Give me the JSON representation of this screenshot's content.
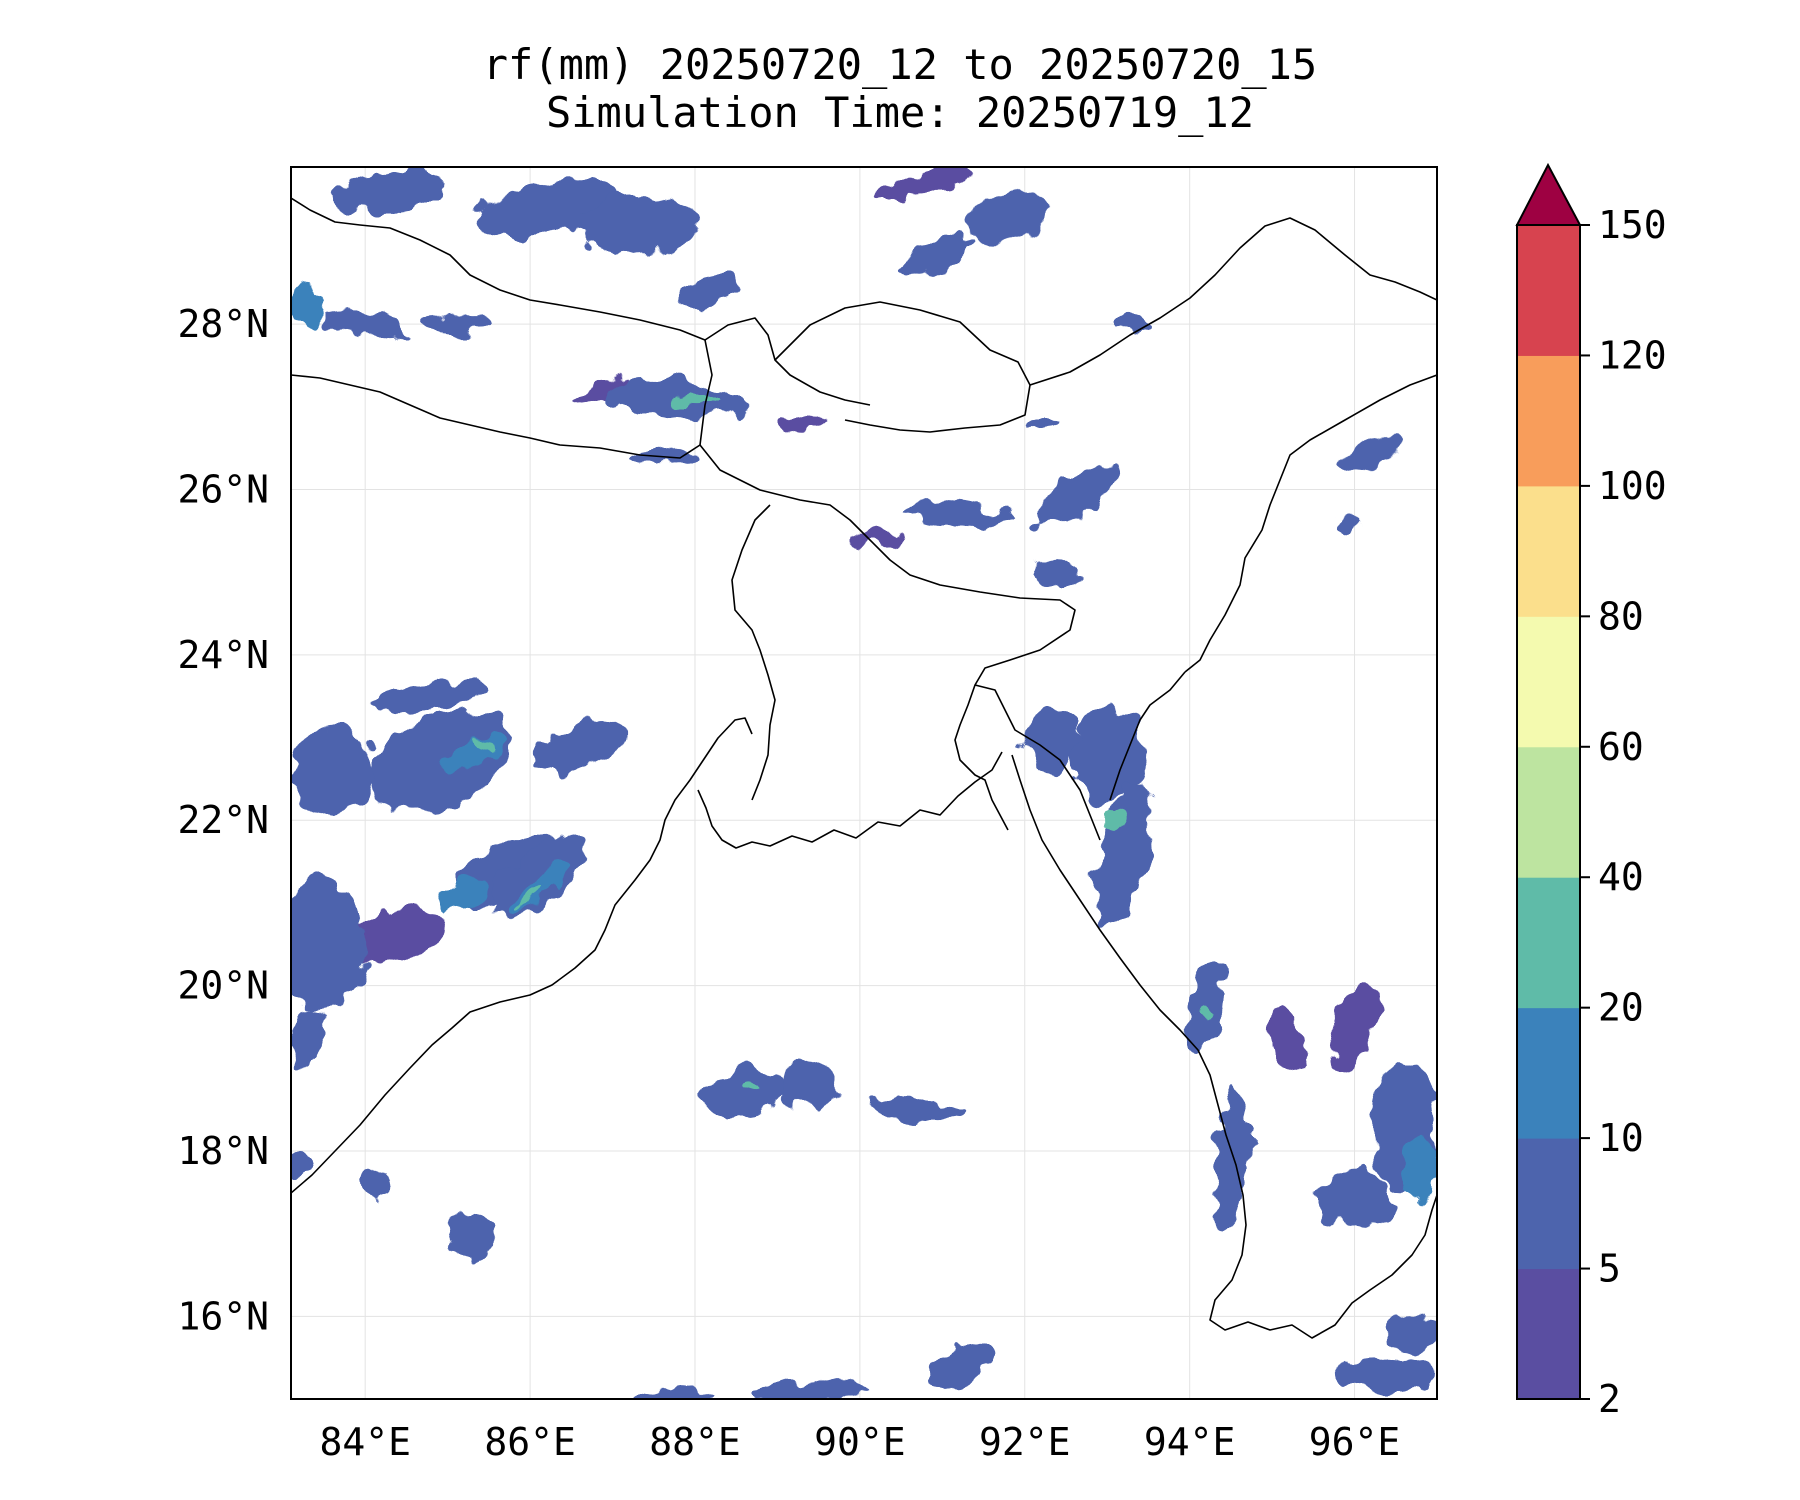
{
  "title": {
    "line1": "rf(mm) 20250720_12 to 20250720_15",
    "line2": "Simulation Time: 20250719_12"
  },
  "map": {
    "lon_range": [
      83.1,
      97.0
    ],
    "lat_range": [
      15.0,
      29.9
    ],
    "lon_ticks": [
      {
        "value": 84,
        "label": "84°E"
      },
      {
        "value": 86,
        "label": "86°E"
      },
      {
        "value": 88,
        "label": "88°E"
      },
      {
        "value": 90,
        "label": "90°E"
      },
      {
        "value": 92,
        "label": "92°E"
      },
      {
        "value": 94,
        "label": "94°E"
      },
      {
        "value": 96,
        "label": "96°E"
      }
    ],
    "lat_ticks": [
      {
        "value": 16,
        "label": "16°N"
      },
      {
        "value": 18,
        "label": "18°N"
      },
      {
        "value": 20,
        "label": "20°N"
      },
      {
        "value": 22,
        "label": "22°N"
      },
      {
        "value": 24,
        "label": "24°N"
      },
      {
        "value": 26,
        "label": "26°N"
      },
      {
        "value": 28,
        "label": "28°N"
      }
    ],
    "grid": true
  },
  "colorbar": {
    "levels": [
      "2",
      "5",
      "10",
      "20",
      "40",
      "60",
      "80",
      "100",
      "120",
      "150"
    ],
    "colors": [
      "#5a4ea1",
      "#4d64ad",
      "#3b82bb",
      "#5fbba8",
      "#bde4a0",
      "#f4faaf",
      "#fbdf8c",
      "#f89d5b",
      "#d7434f"
    ],
    "extend_color": "#9e0142",
    "extend": "max"
  },
  "chart_data": {
    "type": "heatmap",
    "variable": "rf(mm)",
    "title": "rf(mm) 20250720_12 to 20250720_15",
    "subtitle": "Simulation Time: 20250719_12",
    "xlim": [
      83.1,
      97.0
    ],
    "ylim": [
      15.0,
      29.9
    ],
    "levels": [
      2,
      5,
      10,
      20,
      40,
      60,
      80,
      100,
      120,
      150
    ],
    "rain_cells": [
      {
        "lon": 84.3,
        "lat": 29.6,
        "rx": 0.7,
        "ry": 0.25,
        "level": 1,
        "rot": -5
      },
      {
        "lon": 86.2,
        "lat": 29.4,
        "rx": 0.9,
        "ry": 0.3,
        "level": 1,
        "rot": -10
      },
      {
        "lon": 87.3,
        "lat": 29.2,
        "rx": 0.7,
        "ry": 0.35,
        "level": 1,
        "rot": 0
      },
      {
        "lon": 88.2,
        "lat": 28.4,
        "rx": 0.4,
        "ry": 0.18,
        "level": 1,
        "rot": -10
      },
      {
        "lon": 90.9,
        "lat": 28.8,
        "rx": 0.5,
        "ry": 0.18,
        "level": 1,
        "rot": -25
      },
      {
        "lon": 91.8,
        "lat": 29.3,
        "rx": 0.5,
        "ry": 0.3,
        "level": 1,
        "rot": -20
      },
      {
        "lon": 90.8,
        "lat": 29.7,
        "rx": 0.6,
        "ry": 0.12,
        "level": 0,
        "rot": -15
      },
      {
        "lon": 83.3,
        "lat": 28.2,
        "rx": 0.2,
        "ry": 0.25,
        "level": 2,
        "rot": 0
      },
      {
        "lon": 84.0,
        "lat": 28.0,
        "rx": 0.5,
        "ry": 0.15,
        "level": 1,
        "rot": 10
      },
      {
        "lon": 85.1,
        "lat": 28.0,
        "rx": 0.4,
        "ry": 0.12,
        "level": 1,
        "rot": 0
      },
      {
        "lon": 87.8,
        "lat": 27.1,
        "rx": 0.9,
        "ry": 0.22,
        "level": 1,
        "rot": 5
      },
      {
        "lon": 88.0,
        "lat": 27.1,
        "rx": 0.25,
        "ry": 0.08,
        "level": 3,
        "rot": 0
      },
      {
        "lon": 87.6,
        "lat": 26.4,
        "rx": 0.35,
        "ry": 0.1,
        "level": 1,
        "rot": 0
      },
      {
        "lon": 86.9,
        "lat": 27.2,
        "rx": 0.4,
        "ry": 0.1,
        "level": 0,
        "rot": -20
      },
      {
        "lon": 91.2,
        "lat": 25.7,
        "rx": 0.7,
        "ry": 0.12,
        "level": 1,
        "rot": 5
      },
      {
        "lon": 90.2,
        "lat": 25.4,
        "rx": 0.35,
        "ry": 0.1,
        "level": 0,
        "rot": 0
      },
      {
        "lon": 92.6,
        "lat": 25.9,
        "rx": 0.6,
        "ry": 0.2,
        "level": 1,
        "rot": -35
      },
      {
        "lon": 89.3,
        "lat": 26.8,
        "rx": 0.3,
        "ry": 0.12,
        "level": 0,
        "rot": 0
      },
      {
        "lon": 84.8,
        "lat": 23.5,
        "rx": 0.7,
        "ry": 0.16,
        "level": 1,
        "rot": -10
      },
      {
        "lon": 84.9,
        "lat": 22.7,
        "rx": 0.9,
        "ry": 0.55,
        "level": 1,
        "rot": -25
      },
      {
        "lon": 85.3,
        "lat": 22.8,
        "rx": 0.4,
        "ry": 0.15,
        "level": 2,
        "rot": -25
      },
      {
        "lon": 85.4,
        "lat": 22.9,
        "rx": 0.15,
        "ry": 0.07,
        "level": 3,
        "rot": 0
      },
      {
        "lon": 83.6,
        "lat": 22.6,
        "rx": 0.5,
        "ry": 0.5,
        "level": 1,
        "rot": 0
      },
      {
        "lon": 86.6,
        "lat": 22.9,
        "rx": 0.6,
        "ry": 0.25,
        "level": 1,
        "rot": -20
      },
      {
        "lon": 85.7,
        "lat": 21.4,
        "rx": 0.7,
        "ry": 0.35,
        "level": 1,
        "rot": -30
      },
      {
        "lon": 86.1,
        "lat": 21.3,
        "rx": 0.7,
        "ry": 0.3,
        "level": 1,
        "rot": -40
      },
      {
        "lon": 86.1,
        "lat": 21.2,
        "rx": 0.5,
        "ry": 0.13,
        "level": 2,
        "rot": -40
      },
      {
        "lon": 86.0,
        "lat": 21.1,
        "rx": 0.22,
        "ry": 0.07,
        "level": 3,
        "rot": -40
      },
      {
        "lon": 85.2,
        "lat": 21.1,
        "rx": 0.35,
        "ry": 0.15,
        "level": 2,
        "rot": -30
      },
      {
        "lon": 83.5,
        "lat": 20.5,
        "rx": 0.5,
        "ry": 0.8,
        "level": 1,
        "rot": 0
      },
      {
        "lon": 84.4,
        "lat": 20.6,
        "rx": 0.6,
        "ry": 0.3,
        "level": 0,
        "rot": -15
      },
      {
        "lon": 83.3,
        "lat": 19.4,
        "rx": 0.2,
        "ry": 0.35,
        "level": 1,
        "rot": 0
      },
      {
        "lon": 93.0,
        "lat": 22.8,
        "rx": 0.45,
        "ry": 0.6,
        "level": 1,
        "rot": 10
      },
      {
        "lon": 93.2,
        "lat": 21.6,
        "rx": 0.3,
        "ry": 0.9,
        "level": 1,
        "rot": 15
      },
      {
        "lon": 93.1,
        "lat": 22.0,
        "rx": 0.12,
        "ry": 0.08,
        "level": 3,
        "rot": 0
      },
      {
        "lon": 92.3,
        "lat": 23.0,
        "rx": 0.3,
        "ry": 0.4,
        "level": 1,
        "rot": 0
      },
      {
        "lon": 94.2,
        "lat": 19.8,
        "rx": 0.22,
        "ry": 0.55,
        "level": 1,
        "rot": 10
      },
      {
        "lon": 94.2,
        "lat": 19.7,
        "rx": 0.08,
        "ry": 0.06,
        "level": 3,
        "rot": 0
      },
      {
        "lon": 94.5,
        "lat": 17.9,
        "rx": 0.18,
        "ry": 0.9,
        "level": 1,
        "rot": 5
      },
      {
        "lon": 96.0,
        "lat": 17.4,
        "rx": 0.45,
        "ry": 0.35,
        "level": 1,
        "rot": 0
      },
      {
        "lon": 96.6,
        "lat": 18.3,
        "rx": 0.4,
        "ry": 0.8,
        "level": 1,
        "rot": 0
      },
      {
        "lon": 96.8,
        "lat": 17.8,
        "rx": 0.2,
        "ry": 0.4,
        "level": 2,
        "rot": 0
      },
      {
        "lon": 96.0,
        "lat": 19.5,
        "rx": 0.25,
        "ry": 0.6,
        "level": 0,
        "rot": 20
      },
      {
        "lon": 95.2,
        "lat": 19.3,
        "rx": 0.2,
        "ry": 0.4,
        "level": 0,
        "rot": -20
      },
      {
        "lon": 88.6,
        "lat": 18.7,
        "rx": 0.5,
        "ry": 0.3,
        "level": 1,
        "rot": -10
      },
      {
        "lon": 88.7,
        "lat": 18.8,
        "rx": 0.12,
        "ry": 0.06,
        "level": 3,
        "rot": 0
      },
      {
        "lon": 89.4,
        "lat": 18.8,
        "rx": 0.35,
        "ry": 0.3,
        "level": 1,
        "rot": 30
      },
      {
        "lon": 90.7,
        "lat": 18.5,
        "rx": 0.6,
        "ry": 0.13,
        "level": 1,
        "rot": 5
      },
      {
        "lon": 85.3,
        "lat": 17.0,
        "rx": 0.3,
        "ry": 0.3,
        "level": 1,
        "rot": 0
      },
      {
        "lon": 96.4,
        "lat": 15.3,
        "rx": 0.6,
        "ry": 0.18,
        "level": 1,
        "rot": 0
      },
      {
        "lon": 96.7,
        "lat": 15.8,
        "rx": 0.3,
        "ry": 0.25,
        "level": 1,
        "rot": 0
      },
      {
        "lon": 89.4,
        "lat": 15.1,
        "rx": 0.7,
        "ry": 0.12,
        "level": 1,
        "rot": -5
      },
      {
        "lon": 91.2,
        "lat": 15.4,
        "rx": 0.4,
        "ry": 0.2,
        "level": 1,
        "rot": -20
      },
      {
        "lon": 87.7,
        "lat": 15.05,
        "rx": 0.5,
        "ry": 0.1,
        "level": 1,
        "rot": 0
      },
      {
        "lon": 96.2,
        "lat": 26.4,
        "rx": 0.4,
        "ry": 0.15,
        "level": 1,
        "rot": -20
      },
      {
        "lon": 95.9,
        "lat": 25.6,
        "rx": 0.15,
        "ry": 0.1,
        "level": 1,
        "rot": 0
      },
      {
        "lon": 92.4,
        "lat": 25.0,
        "rx": 0.3,
        "ry": 0.15,
        "level": 1,
        "rot": 0
      },
      {
        "lon": 93.3,
        "lat": 28.0,
        "rx": 0.2,
        "ry": 0.1,
        "level": 1,
        "rot": 0
      },
      {
        "lon": 92.2,
        "lat": 26.8,
        "rx": 0.2,
        "ry": 0.1,
        "level": 1,
        "rot": 0
      },
      {
        "lon": 84.1,
        "lat": 17.6,
        "rx": 0.15,
        "ry": 0.2,
        "level": 1,
        "rot": 0
      },
      {
        "lon": 83.2,
        "lat": 17.8,
        "rx": 0.12,
        "ry": 0.2,
        "level": 1,
        "rot": 0
      }
    ]
  }
}
